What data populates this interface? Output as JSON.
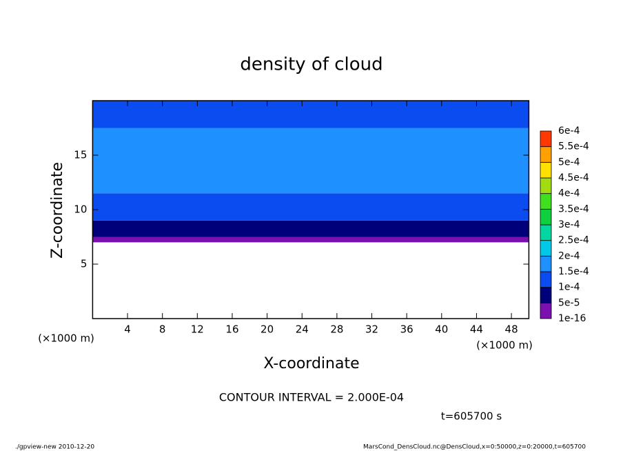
{
  "chart_data": {
    "type": "contour",
    "title": "density of cloud",
    "x_label": "X-coordinate",
    "y_label": "Z-coordinate",
    "x_unit_left": "(×1000 m)",
    "x_unit_right": "(×1000 m)",
    "contour_interval": "CONTOUR INTERVAL = 2.000E-04",
    "time_label": "t=605700 s",
    "footer_left": "./gpview-new   2010-12-20",
    "footer_right": "MarsCond_DensCloud.nc@DensCloud,x=0:50000,z=0:20000,t=605700",
    "xlim": [
      0,
      50
    ],
    "xticks": [
      4,
      8,
      12,
      16,
      20,
      24,
      28,
      32,
      36,
      40,
      44,
      48
    ],
    "ylim": [
      0,
      20
    ],
    "yticks": [
      5,
      10,
      15
    ],
    "field": {
      "z_edges": [
        7,
        7.5,
        9,
        11.5,
        17.5,
        20
      ],
      "values": [
        3e-05,
        7e-05,
        0.00012,
        0.00016,
        0.00014
      ]
    },
    "colorbar": {
      "levels": [
        {
          "value": 1e-16,
          "label": "1e-16"
        },
        {
          "value": 5e-05,
          "label": "5e-5"
        },
        {
          "value": 0.0001,
          "label": "1e-4"
        },
        {
          "value": 0.00015,
          "label": "1.5e-4"
        },
        {
          "value": 0.0002,
          "label": "2e-4"
        },
        {
          "value": 0.00025,
          "label": "2.5e-4"
        },
        {
          "value": 0.0003,
          "label": "3e-4"
        },
        {
          "value": 0.00035,
          "label": "3.5e-4"
        },
        {
          "value": 0.0004,
          "label": "4e-4"
        },
        {
          "value": 0.00045,
          "label": "4.5e-4"
        },
        {
          "value": 0.0005,
          "label": "5e-4"
        },
        {
          "value": 0.00055,
          "label": "5.5e-4"
        },
        {
          "value": 0.0006,
          "label": "6e-4"
        }
      ],
      "colors": [
        "#7a10b0",
        "#00007a",
        "#0a4cf0",
        "#1e90ff",
        "#00c8e8",
        "#00d8a0",
        "#10d040",
        "#40e020",
        "#a0dc10",
        "#ffe000",
        "#ffa000",
        "#ff3800",
        "#f07878"
      ]
    }
  }
}
